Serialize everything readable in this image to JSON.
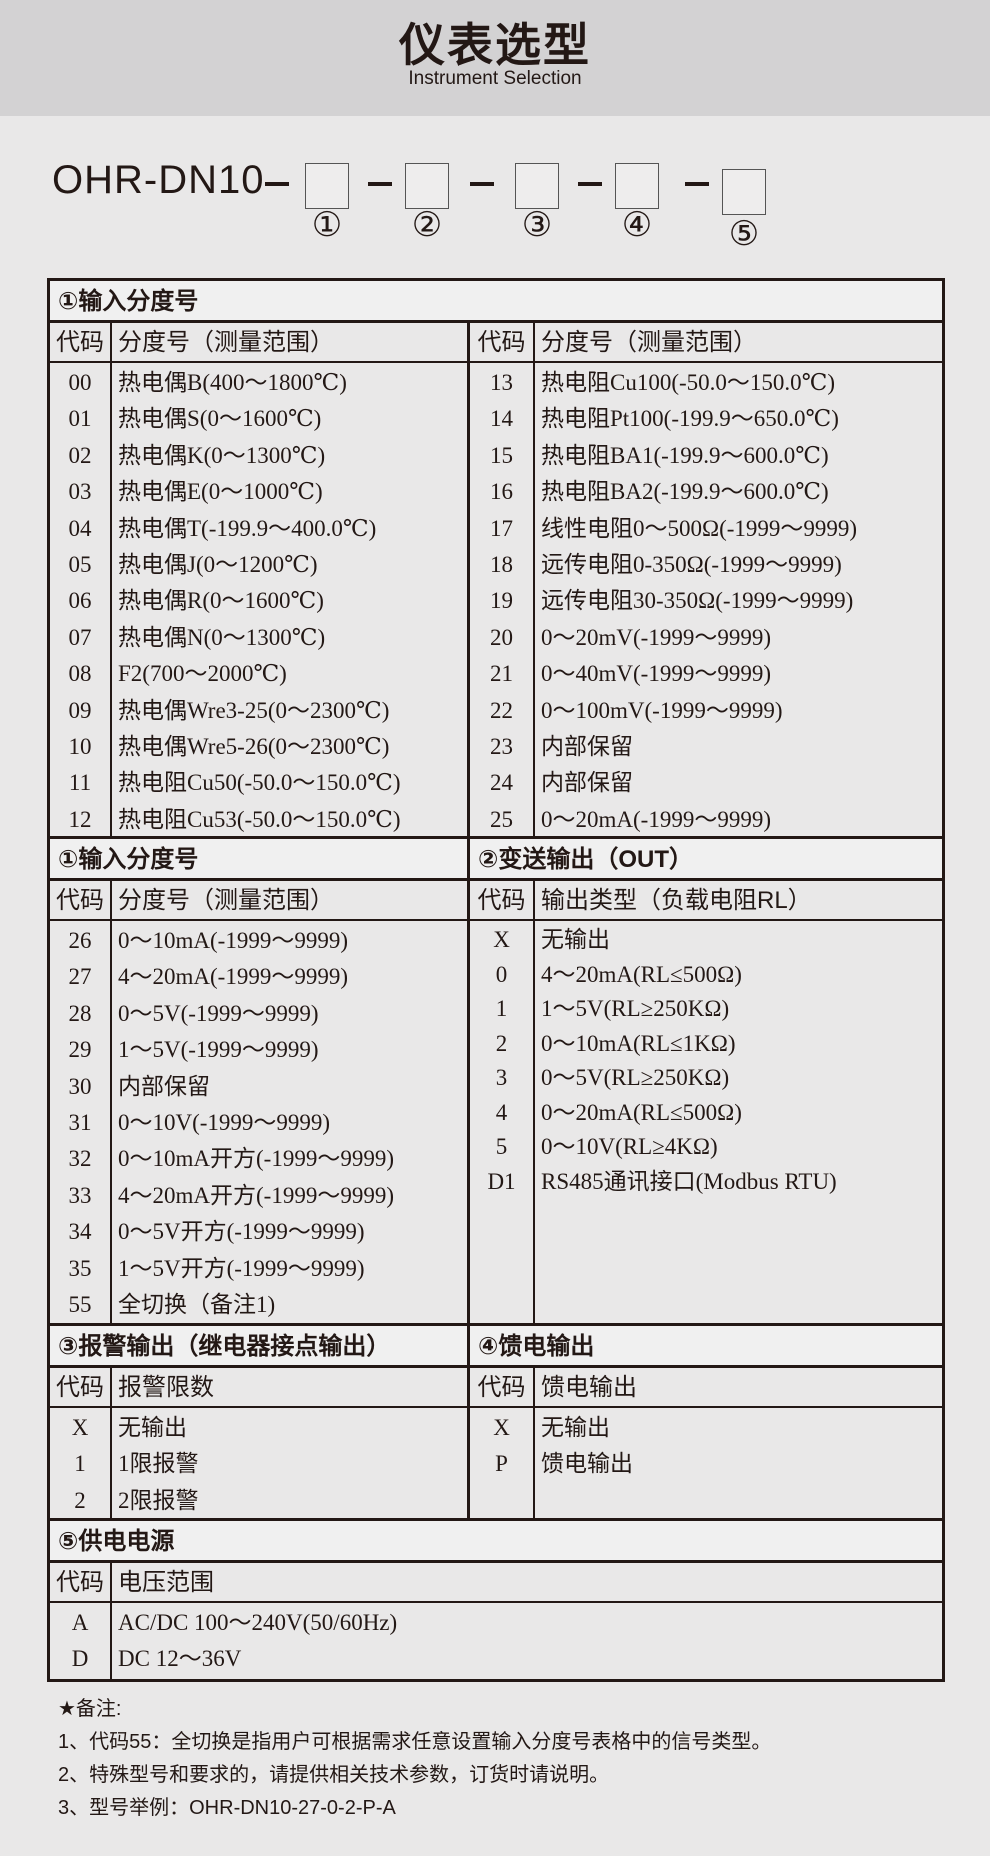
{
  "header": {
    "title": "仪表选型",
    "subtitle": "Instrument Selection"
  },
  "model": {
    "prefix": "OHR-DN10",
    "markers": [
      "①",
      "②",
      "③",
      "④",
      "⑤"
    ]
  },
  "code_label": "代码",
  "sec1": {
    "title": "①输入分度号",
    "col": "分度号（测量范围）",
    "left": [
      [
        "00",
        "热电偶B(400～1800℃)"
      ],
      [
        "01",
        "热电偶S(0～1600℃)"
      ],
      [
        "02",
        "热电偶K(0～1300℃)"
      ],
      [
        "03",
        "热电偶E(0～1000℃)"
      ],
      [
        "04",
        "热电偶T(-199.9～400.0℃)"
      ],
      [
        "05",
        "热电偶J(0～1200℃)"
      ],
      [
        "06",
        "热电偶R(0～1600℃)"
      ],
      [
        "07",
        "热电偶N(0～1300℃)"
      ],
      [
        "08",
        "F2(700～2000℃)"
      ],
      [
        "09",
        "热电偶Wre3-25(0～2300℃)"
      ],
      [
        "10",
        "热电偶Wre5-26(0～2300℃)"
      ],
      [
        "11",
        "热电阻Cu50(-50.0～150.0℃)"
      ],
      [
        "12",
        "热电阻Cu53(-50.0～150.0℃)"
      ]
    ],
    "right": [
      [
        "13",
        "热电阻Cu100(-50.0～150.0℃)"
      ],
      [
        "14",
        "热电阻Pt100(-199.9～650.0℃)"
      ],
      [
        "15",
        "热电阻BA1(-199.9～600.0℃)"
      ],
      [
        "16",
        "热电阻BA2(-199.9～600.0℃)"
      ],
      [
        "17",
        "线性电阻0～500Ω(-1999～9999)"
      ],
      [
        "18",
        "远传电阻0-350Ω(-1999～9999)"
      ],
      [
        "19",
        "远传电阻30-350Ω(-1999～9999)"
      ],
      [
        "20",
        "0～20mV(-1999～9999)"
      ],
      [
        "21",
        "0～40mV(-1999～9999)"
      ],
      [
        "22",
        "0～100mV(-1999～9999)"
      ],
      [
        "23",
        "内部保留"
      ],
      [
        "24",
        "内部保留"
      ],
      [
        "25",
        "0～20mA(-1999～9999)"
      ]
    ]
  },
  "sec1b": {
    "title": "①输入分度号",
    "col": "分度号（测量范围）",
    "rows": [
      [
        "26",
        "0～10mA(-1999～9999)"
      ],
      [
        "27",
        "4～20mA(-1999～9999)"
      ],
      [
        "28",
        "0～5V(-1999～9999)"
      ],
      [
        "29",
        "1～5V(-1999～9999)"
      ],
      [
        "30",
        "内部保留"
      ],
      [
        "31",
        "0～10V(-1999～9999)"
      ],
      [
        "32",
        "0～10mA开方(-1999～9999)"
      ],
      [
        "33",
        "4～20mA开方(-1999～9999)"
      ],
      [
        "34",
        "0～5V开方(-1999～9999)"
      ],
      [
        "35",
        "1～5V开方(-1999～9999)"
      ],
      [
        "55",
        "全切换（备注1)"
      ]
    ]
  },
  "sec2": {
    "title": "②变送输出（OUT）",
    "col": "输出类型（负载电阻RL）",
    "rows": [
      [
        "X",
        "无输出"
      ],
      [
        "0",
        "4～20mA(RL≤500Ω)"
      ],
      [
        "1",
        "1～5V(RL≥250KΩ)"
      ],
      [
        "2",
        "0～10mA(RL≤1KΩ)"
      ],
      [
        "3",
        "0～5V(RL≥250KΩ)"
      ],
      [
        "4",
        "0～20mA(RL≤500Ω)"
      ],
      [
        "5",
        "0～10V(RL≥4KΩ)"
      ],
      [
        "D1",
        "RS485通讯接口(Modbus RTU)"
      ]
    ]
  },
  "sec3": {
    "title": "③报警输出（继电器接点输出）",
    "col": "报警限数",
    "rows": [
      [
        "X",
        "无输出"
      ],
      [
        "1",
        "1限报警"
      ],
      [
        "2",
        "2限报警"
      ]
    ]
  },
  "sec4": {
    "title": "④馈电输出",
    "col": "馈电输出",
    "rows": [
      [
        "X",
        "无输出"
      ],
      [
        "P",
        "馈电输出"
      ]
    ]
  },
  "sec5": {
    "title": "⑤供电电源",
    "col": "电压范围",
    "rows": [
      [
        "A",
        "AC/DC 100～240V(50/60Hz)"
      ],
      [
        "D",
        "DC 12～36V"
      ]
    ]
  },
  "notes": {
    "title": "★备注:",
    "items": [
      "1、代码55：全切换是指用户可根据需求任意设置输入分度号表格中的信号类型。",
      "2、特殊型号和要求的，请提供相关技术参数，订货时请说明。",
      "3、型号举例：OHR-DN10-27-0-2-P-A"
    ]
  }
}
